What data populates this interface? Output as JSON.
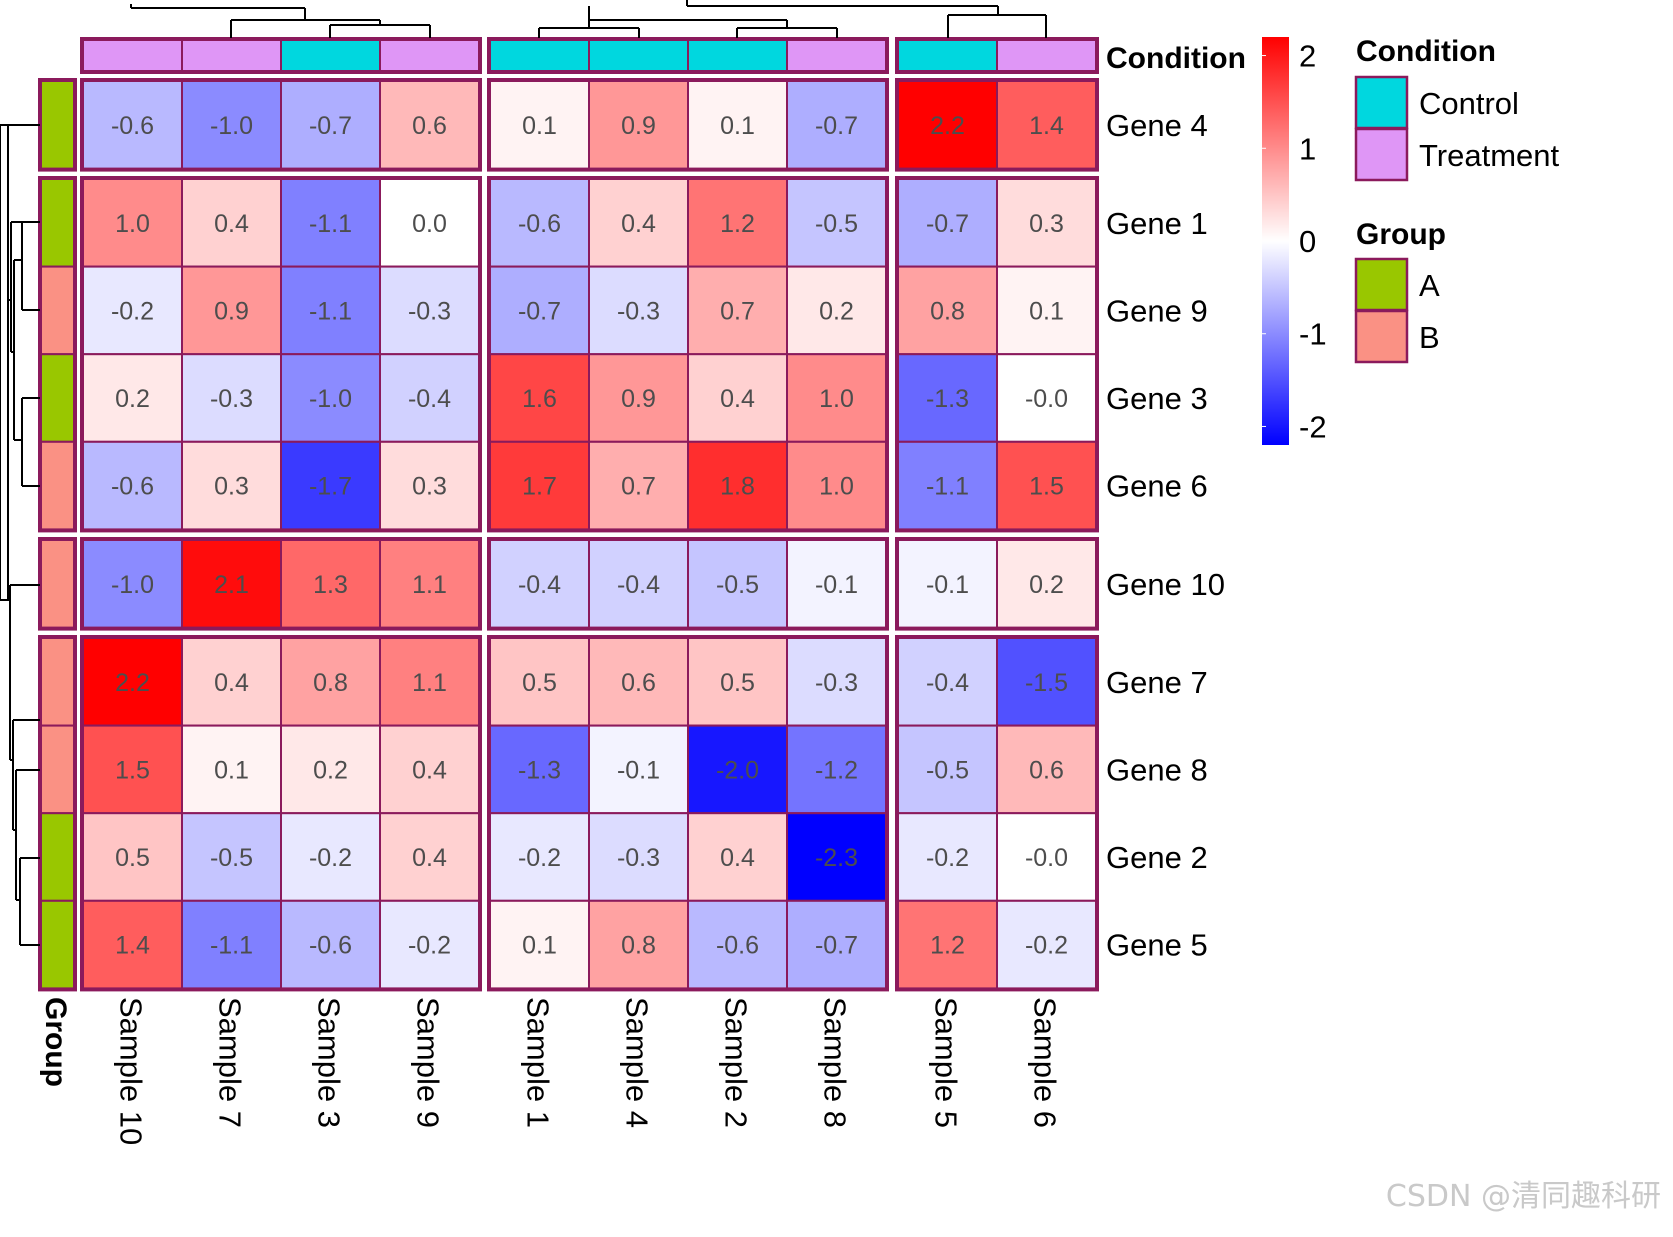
{
  "chart_data": {
    "type": "heatmap",
    "columns": [
      "Sample 10",
      "Sample 7",
      "Sample 3",
      "Sample 9",
      "Sample 1",
      "Sample 4",
      "Sample 2",
      "Sample 8",
      "Sample 5",
      "Sample 6"
    ],
    "column_splits": [
      4,
      4,
      2
    ],
    "column_condition": [
      "Treatment",
      "Treatment",
      "Control",
      "Treatment",
      "Control",
      "Control",
      "Control",
      "Treatment",
      "Control",
      "Treatment"
    ],
    "rows": [
      "Gene 4",
      "Gene 1",
      "Gene 9",
      "Gene 3",
      "Gene 6",
      "Gene 10",
      "Gene 7",
      "Gene 8",
      "Gene 2",
      "Gene 5"
    ],
    "row_splits": [
      1,
      4,
      1,
      4
    ],
    "row_group": [
      "A",
      "A",
      "B",
      "A",
      "B",
      "B",
      "B",
      "B",
      "A",
      "A"
    ],
    "values": [
      [
        -0.6,
        -1.0,
        -0.7,
        0.6,
        0.1,
        0.9,
        0.1,
        -0.7,
        2.2,
        1.4
      ],
      [
        1.0,
        0.4,
        -1.1,
        0.0,
        -0.6,
        0.4,
        1.2,
        -0.5,
        -0.7,
        0.3
      ],
      [
        -0.2,
        0.9,
        -1.1,
        -0.3,
        -0.7,
        -0.3,
        0.7,
        0.2,
        0.8,
        0.1
      ],
      [
        0.2,
        -0.3,
        -1.0,
        -0.4,
        1.6,
        0.9,
        0.4,
        1.0,
        -1.3,
        -0.0
      ],
      [
        -0.6,
        0.3,
        -1.7,
        0.3,
        1.7,
        0.7,
        1.8,
        1.0,
        -1.1,
        1.5
      ],
      [
        -1.0,
        2.1,
        1.3,
        1.1,
        -0.4,
        -0.4,
        -0.5,
        -0.1,
        -0.1,
        0.2
      ],
      [
        2.2,
        0.4,
        0.8,
        1.1,
        0.5,
        0.6,
        0.5,
        -0.3,
        -0.4,
        -1.5
      ],
      [
        1.5,
        0.1,
        0.2,
        0.4,
        -1.3,
        -0.1,
        -2.0,
        -1.2,
        -0.5,
        0.6
      ],
      [
        0.5,
        -0.5,
        -0.2,
        0.4,
        -0.2,
        -0.3,
        0.4,
        -2.3,
        -0.2,
        -0.0
      ],
      [
        1.4,
        -1.1,
        -0.6,
        -0.2,
        0.1,
        0.8,
        -0.6,
        -0.7,
        1.2,
        -0.2
      ]
    ],
    "labels": [
      [
        "-0.6",
        "-1.0",
        "-0.7",
        "0.6",
        "0.1",
        "0.9",
        "0.1",
        "-0.7",
        "2.2",
        "1.4"
      ],
      [
        "1.0",
        "0.4",
        "-1.1",
        "0.0",
        "-0.6",
        "0.4",
        "1.2",
        "-0.5",
        "-0.7",
        "0.3"
      ],
      [
        "-0.2",
        "0.9",
        "-1.1",
        "-0.3",
        "-0.7",
        "-0.3",
        "0.7",
        "0.2",
        "0.8",
        "0.1"
      ],
      [
        "0.2",
        "-0.3",
        "-1.0",
        "-0.4",
        "1.6",
        "0.9",
        "0.4",
        "1.0",
        "-1.3",
        "-0.0"
      ],
      [
        "-0.6",
        "0.3",
        "-1.7",
        "0.3",
        "1.7",
        "0.7",
        "1.8",
        "1.0",
        "-1.1",
        "1.5"
      ],
      [
        "-1.0",
        "2.1",
        "1.3",
        "1.1",
        "-0.4",
        "-0.4",
        "-0.5",
        "-0.1",
        "-0.1",
        "0.2"
      ],
      [
        "2.2",
        "0.4",
        "0.8",
        "1.1",
        "0.5",
        "0.6",
        "0.5",
        "-0.3",
        "-0.4",
        "-1.5"
      ],
      [
        "1.5",
        "0.1",
        "0.2",
        "0.4",
        "-1.3",
        "-0.1",
        "-2.0",
        "-1.2",
        "-0.5",
        "0.6"
      ],
      [
        "0.5",
        "-0.5",
        "-0.2",
        "0.4",
        "-0.2",
        "-0.3",
        "0.4",
        "-2.3",
        "-0.2",
        "-0.0"
      ],
      [
        "1.4",
        "-1.1",
        "-0.6",
        "-0.2",
        "0.1",
        "0.8",
        "-0.6",
        "-0.7",
        "1.2",
        "-0.2"
      ]
    ],
    "color_scale": {
      "min": -2.2,
      "mid": 0,
      "max": 2.2,
      "low": "#0000ff",
      "midcolor": "#ffffff",
      "high": "#ff0000"
    },
    "colorbar_ticks": [
      "2",
      "1",
      "0",
      "-1",
      "-2"
    ],
    "colorbar_tick_values": [
      2,
      1,
      0,
      -1,
      -2
    ],
    "col_annotation_title": "Condition",
    "row_annotation_title": "Group",
    "legend": {
      "condition_title": "Condition",
      "condition_items": [
        {
          "label": "Control",
          "color": "#00d7df"
        },
        {
          "label": "Treatment",
          "color": "#df96f6"
        }
      ],
      "group_title": "Group",
      "group_items": [
        {
          "label": "A",
          "color": "#99c700"
        },
        {
          "label": "B",
          "color": "#fa9184"
        }
      ]
    },
    "border_color": "#8b1a5c",
    "dendrogram_color": "#000000"
  },
  "watermark": "CSDN @清同趣科研"
}
